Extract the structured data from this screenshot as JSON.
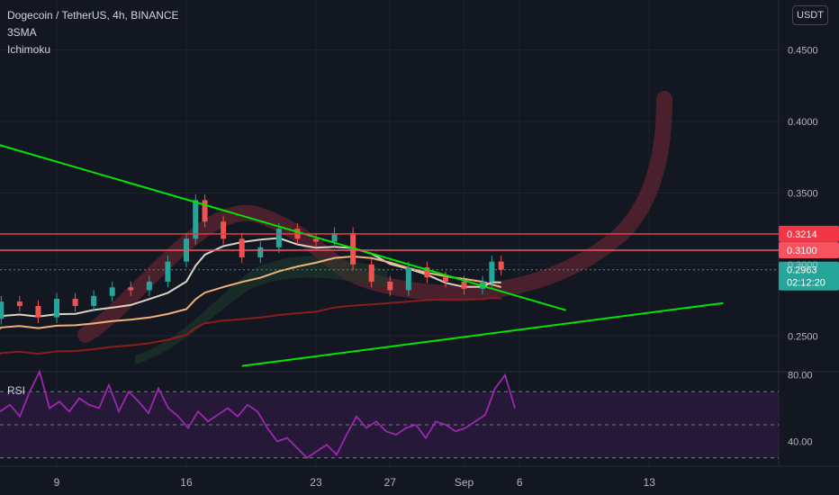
{
  "header": {
    "title": "Dogecoin / TetherUS, 4h, BINANCE",
    "indicators": [
      "3SMA",
      "Ichimoku"
    ],
    "currency": "USDT"
  },
  "colors": {
    "background": "#131722",
    "grid": "#1e222d",
    "candle_up": "#26a69a",
    "candle_down": "#ef5350",
    "resistance_1": "#f23645",
    "resistance_2": "#f7525f",
    "current_price": "#26a69a",
    "trendline": "#00e600",
    "rsi": "#9c27b0",
    "rsi_band": "#2a1a3d",
    "projection": "#5c2430"
  },
  "chart_data": [
    {
      "type": "candlestick",
      "title": "Dogecoin / TetherUS, 4h, BINANCE",
      "x_ticks": [
        "9",
        "16",
        "23",
        "27",
        "Sep",
        "6",
        "13"
      ],
      "y_ticks": [
        "0.2500",
        "0.3000",
        "0.3500",
        "0.4000",
        "0.4500"
      ],
      "ylim": [
        0.225,
        0.485
      ],
      "price_labels": [
        {
          "label": "0.3214",
          "value": 0.3214,
          "kind": "resistance"
        },
        {
          "label": "0.3100",
          "value": 0.31,
          "kind": "resistance"
        },
        {
          "label": "0.2963",
          "value": 0.2963,
          "kind": "current"
        }
      ],
      "countdown": "02:12:20",
      "x_day_range": [
        5,
        20
      ],
      "candles_daily_close": [
        {
          "day": 5.5,
          "close": 0.262
        },
        {
          "day": 6.0,
          "close": 0.274
        },
        {
          "day": 7.0,
          "close": 0.271
        },
        {
          "day": 8.0,
          "close": 0.263
        },
        {
          "day": 9.0,
          "close": 0.276
        },
        {
          "day": 10.0,
          "close": 0.271
        },
        {
          "day": 11.0,
          "close": 0.278
        },
        {
          "day": 12.0,
          "close": 0.284
        },
        {
          "day": 13.0,
          "close": 0.282
        },
        {
          "day": 14.0,
          "close": 0.288
        },
        {
          "day": 15.0,
          "close": 0.302
        },
        {
          "day": 16.0,
          "close": 0.318
        },
        {
          "day": 16.5,
          "close": 0.345
        },
        {
          "day": 17.0,
          "close": 0.33
        },
        {
          "day": 18.0,
          "close": 0.318
        },
        {
          "day": 19.0,
          "close": 0.305
        },
        {
          "day": 20.0,
          "close": 0.312
        },
        {
          "day": 21.0,
          "close": 0.325
        },
        {
          "day": 22.0,
          "close": 0.318
        },
        {
          "day": 23.0,
          "close": 0.316
        },
        {
          "day": 24.0,
          "close": 0.322
        },
        {
          "day": 25.0,
          "close": 0.3
        },
        {
          "day": 26.0,
          "close": 0.288
        },
        {
          "day": 27.0,
          "close": 0.282
        },
        {
          "day": 28.0,
          "close": 0.298
        },
        {
          "day": 29.0,
          "close": 0.291
        },
        {
          "day": 30.0,
          "close": 0.288
        },
        {
          "day": 31.0,
          "close": 0.283
        },
        {
          "day": 32.0,
          "close": 0.288
        },
        {
          "day": 32.5,
          "close": 0.302
        },
        {
          "day": 33.0,
          "close": 0.2963
        }
      ],
      "trendlines": [
        {
          "name": "descending",
          "from": {
            "day": 5.0,
            "price": 0.387
          },
          "to": {
            "day": 36.5,
            "price": 0.268
          }
        },
        {
          "name": "ascending",
          "from": {
            "day": 19.0,
            "price": 0.229
          },
          "to": {
            "day": 45.0,
            "price": 0.273
          }
        }
      ]
    },
    {
      "type": "line",
      "title": "RSI",
      "y_ticks": [
        "40.00",
        "80.00"
      ],
      "levels": [
        70,
        50,
        30
      ],
      "ylim": [
        25,
        82
      ],
      "series": [
        {
          "name": "RSI",
          "values": [
            58,
            62,
            55,
            70,
            82,
            60,
            64,
            58,
            66,
            62,
            60,
            74,
            58,
            70,
            64,
            57,
            72,
            60,
            55,
            48,
            58,
            52,
            56,
            60,
            55,
            62,
            58,
            48,
            40,
            42,
            36,
            30,
            34,
            38,
            32,
            44,
            55,
            48,
            52,
            46,
            44,
            48,
            50,
            42,
            52,
            50,
            46,
            48,
            52,
            56,
            72,
            80,
            60
          ]
        }
      ]
    }
  ]
}
